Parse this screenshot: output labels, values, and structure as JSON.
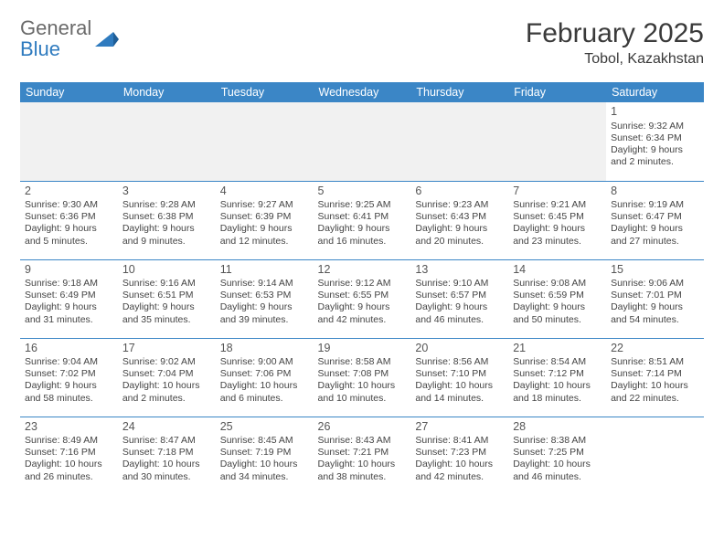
{
  "brand": {
    "part1": "General",
    "part2": "Blue"
  },
  "title": "February 2025",
  "location": "Tobol, Kazakhstan",
  "colors": {
    "header_bg": "#3b86c6",
    "header_text": "#ffffff",
    "border": "#3b86c6",
    "blank_bg": "#f1f1f1",
    "logo_gray": "#6a6a6a",
    "logo_blue": "#2f7bbf"
  },
  "day_names": [
    "Sunday",
    "Monday",
    "Tuesday",
    "Wednesday",
    "Thursday",
    "Friday",
    "Saturday"
  ],
  "weeks": [
    [
      null,
      null,
      null,
      null,
      null,
      null,
      {
        "n": "1",
        "sunrise": "9:32 AM",
        "sunset": "6:34 PM",
        "daylight": "9 hours and 2 minutes."
      }
    ],
    [
      {
        "n": "2",
        "sunrise": "9:30 AM",
        "sunset": "6:36 PM",
        "daylight": "9 hours and 5 minutes."
      },
      {
        "n": "3",
        "sunrise": "9:28 AM",
        "sunset": "6:38 PM",
        "daylight": "9 hours and 9 minutes."
      },
      {
        "n": "4",
        "sunrise": "9:27 AM",
        "sunset": "6:39 PM",
        "daylight": "9 hours and 12 minutes."
      },
      {
        "n": "5",
        "sunrise": "9:25 AM",
        "sunset": "6:41 PM",
        "daylight": "9 hours and 16 minutes."
      },
      {
        "n": "6",
        "sunrise": "9:23 AM",
        "sunset": "6:43 PM",
        "daylight": "9 hours and 20 minutes."
      },
      {
        "n": "7",
        "sunrise": "9:21 AM",
        "sunset": "6:45 PM",
        "daylight": "9 hours and 23 minutes."
      },
      {
        "n": "8",
        "sunrise": "9:19 AM",
        "sunset": "6:47 PM",
        "daylight": "9 hours and 27 minutes."
      }
    ],
    [
      {
        "n": "9",
        "sunrise": "9:18 AM",
        "sunset": "6:49 PM",
        "daylight": "9 hours and 31 minutes."
      },
      {
        "n": "10",
        "sunrise": "9:16 AM",
        "sunset": "6:51 PM",
        "daylight": "9 hours and 35 minutes."
      },
      {
        "n": "11",
        "sunrise": "9:14 AM",
        "sunset": "6:53 PM",
        "daylight": "9 hours and 39 minutes."
      },
      {
        "n": "12",
        "sunrise": "9:12 AM",
        "sunset": "6:55 PM",
        "daylight": "9 hours and 42 minutes."
      },
      {
        "n": "13",
        "sunrise": "9:10 AM",
        "sunset": "6:57 PM",
        "daylight": "9 hours and 46 minutes."
      },
      {
        "n": "14",
        "sunrise": "9:08 AM",
        "sunset": "6:59 PM",
        "daylight": "9 hours and 50 minutes."
      },
      {
        "n": "15",
        "sunrise": "9:06 AM",
        "sunset": "7:01 PM",
        "daylight": "9 hours and 54 minutes."
      }
    ],
    [
      {
        "n": "16",
        "sunrise": "9:04 AM",
        "sunset": "7:02 PM",
        "daylight": "9 hours and 58 minutes."
      },
      {
        "n": "17",
        "sunrise": "9:02 AM",
        "sunset": "7:04 PM",
        "daylight": "10 hours and 2 minutes."
      },
      {
        "n": "18",
        "sunrise": "9:00 AM",
        "sunset": "7:06 PM",
        "daylight": "10 hours and 6 minutes."
      },
      {
        "n": "19",
        "sunrise": "8:58 AM",
        "sunset": "7:08 PM",
        "daylight": "10 hours and 10 minutes."
      },
      {
        "n": "20",
        "sunrise": "8:56 AM",
        "sunset": "7:10 PM",
        "daylight": "10 hours and 14 minutes."
      },
      {
        "n": "21",
        "sunrise": "8:54 AM",
        "sunset": "7:12 PM",
        "daylight": "10 hours and 18 minutes."
      },
      {
        "n": "22",
        "sunrise": "8:51 AM",
        "sunset": "7:14 PM",
        "daylight": "10 hours and 22 minutes."
      }
    ],
    [
      {
        "n": "23",
        "sunrise": "8:49 AM",
        "sunset": "7:16 PM",
        "daylight": "10 hours and 26 minutes."
      },
      {
        "n": "24",
        "sunrise": "8:47 AM",
        "sunset": "7:18 PM",
        "daylight": "10 hours and 30 minutes."
      },
      {
        "n": "25",
        "sunrise": "8:45 AM",
        "sunset": "7:19 PM",
        "daylight": "10 hours and 34 minutes."
      },
      {
        "n": "26",
        "sunrise": "8:43 AM",
        "sunset": "7:21 PM",
        "daylight": "10 hours and 38 minutes."
      },
      {
        "n": "27",
        "sunrise": "8:41 AM",
        "sunset": "7:23 PM",
        "daylight": "10 hours and 42 minutes."
      },
      {
        "n": "28",
        "sunrise": "8:38 AM",
        "sunset": "7:25 PM",
        "daylight": "10 hours and 46 minutes."
      },
      null
    ]
  ],
  "labels": {
    "sunrise": "Sunrise:",
    "sunset": "Sunset:",
    "daylight": "Daylight:"
  }
}
